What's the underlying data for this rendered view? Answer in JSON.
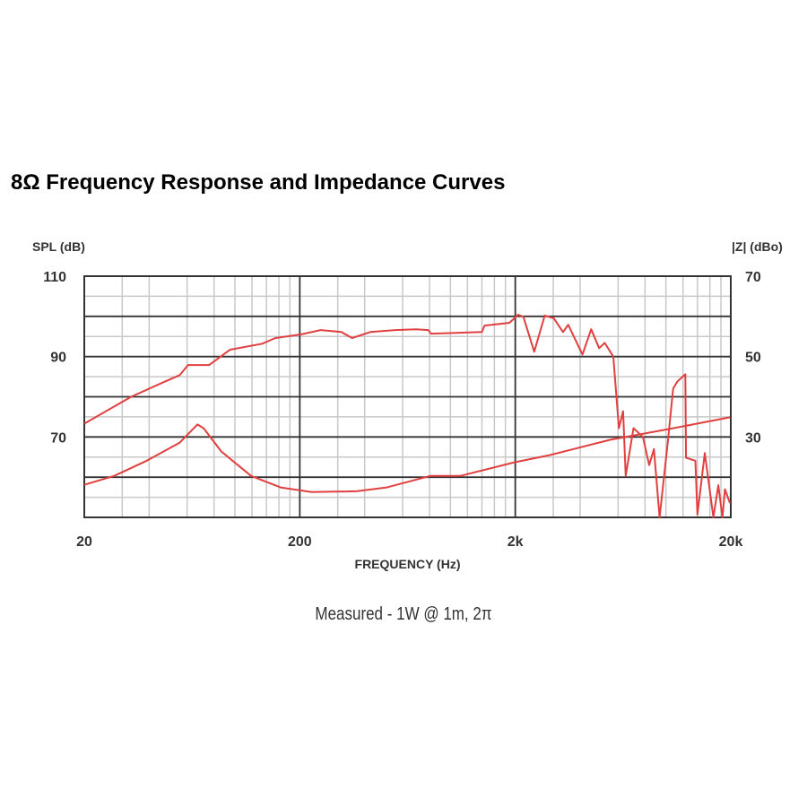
{
  "chart_data": {
    "type": "line",
    "title": "8Ω Frequency Response and Impedance Curves",
    "note": "Measured - 1W @ 1m, 2π",
    "xlabel": "FREQUENCY (Hz)",
    "ylabel": "SPL (dB)",
    "y2label": "|Z| (dBo)",
    "xscale": "log",
    "xlim": [
      20,
      20000
    ],
    "ylim": [
      50,
      110
    ],
    "y2lim": [
      10,
      70
    ],
    "x_ticks": [
      {
        "value": 20,
        "label": "20"
      },
      {
        "value": 200,
        "label": "200"
      },
      {
        "value": 2000,
        "label": "2k"
      },
      {
        "value": 20000,
        "label": "20k"
      }
    ],
    "y_ticks": [
      {
        "value": 110,
        "label": "110"
      },
      {
        "value": 90,
        "label": "90"
      },
      {
        "value": 70,
        "label": "70"
      }
    ],
    "y2_ticks": [
      {
        "value": 70,
        "label": "70"
      },
      {
        "value": 50,
        "label": "50"
      },
      {
        "value": 30,
        "label": "30"
      }
    ],
    "grid": true,
    "line_color": "#e0403f",
    "series": [
      {
        "axis": "left",
        "x": [
          20,
          33,
          45.6,
          55.5,
          60.6,
          76,
          95,
          134,
          154,
          202,
          250,
          312,
          350,
          425,
          555,
          690,
          790,
          812,
          1400,
          1440,
          1880,
          2060,
          2180,
          2450,
          2740,
          3020,
          3330,
          3520,
          4100,
          4500,
          4900,
          5200,
          5700,
          6050,
          6330,
          6510,
          7070,
          7820,
          8360,
          8800,
          9350,
          10200,
          10800,
          11300,
          12300,
          12400,
          13700,
          14000,
          15150,
          16600,
          17500,
          18300,
          18800,
          19800
        ],
        "y": [
          73.3,
          80,
          83.4,
          85.4,
          87.9,
          87.9,
          91.7,
          93.2,
          94.6,
          95.5,
          96.6,
          96.1,
          94.6,
          96.1,
          96.6,
          96.8,
          96.6,
          95.7,
          96.1,
          97.7,
          98.4,
          100.4,
          99.9,
          91.2,
          100.2,
          99.5,
          96.1,
          97.9,
          90.5,
          96.8,
          92.1,
          93.4,
          90,
          72.2,
          76.4,
          60.3,
          72.2,
          70,
          63,
          67,
          50,
          68.6,
          82,
          83.8,
          85.6,
          64.8,
          64.1,
          50.7,
          66,
          50,
          58,
          50,
          57,
          53.6
        ]
      },
      {
        "axis": "right",
        "x": [
          20,
          27.5,
          39,
          55.5,
          67,
          71.5,
          86.5,
          119,
          164,
          227,
          366,
          502,
          806,
          1110,
          1980,
          2900,
          5500,
          10400,
          19800
        ],
        "y": [
          18.1,
          20.3,
          24.1,
          28.6,
          33.1,
          32.2,
          26.4,
          20.3,
          17.4,
          16.3,
          16.5,
          17.4,
          20.3,
          20.3,
          23.7,
          25.5,
          29.3,
          32,
          34.9
        ]
      }
    ]
  }
}
